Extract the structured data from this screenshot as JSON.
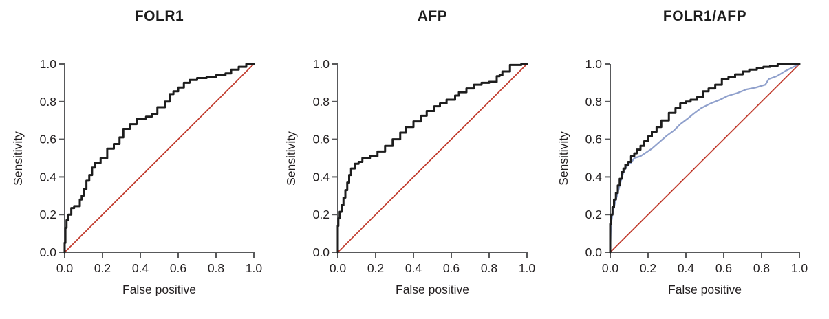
{
  "figure": {
    "background": "#ffffff",
    "text_color": "#231f20",
    "axis_color": "#58595b"
  },
  "chart_data": [
    {
      "type": "line",
      "title": "FOLR1",
      "xlabel": "False positive",
      "ylabel": "Sensitivity",
      "xlim": [
        0,
        1
      ],
      "ylim": [
        0,
        1
      ],
      "xticks": [
        0,
        0.2,
        0.4,
        0.6,
        0.8,
        1.0
      ],
      "yticks": [
        0,
        0.2,
        0.4,
        0.6,
        0.8,
        1.0
      ],
      "xtick_labels": [
        "0.0",
        "0.2",
        "0.4",
        "0.6",
        "0.8",
        "1.0"
      ],
      "ytick_labels": [
        "0.0",
        "0.2",
        "0.4",
        "0.6",
        "0.8",
        "1.0"
      ],
      "grid": false,
      "legend": "none",
      "reference_line": {
        "name": "chance-diagonal",
        "x": [
          0,
          1
        ],
        "y": [
          0,
          1
        ],
        "color": "#c0392b"
      },
      "series": [
        {
          "name": "FOLR1 ROC curve",
          "color": "#1d1d1d",
          "step": true,
          "x": [
            0,
            0.004,
            0.01,
            0.02,
            0.035,
            0.05,
            0.08,
            0.09,
            0.1,
            0.115,
            0.13,
            0.145,
            0.16,
            0.19,
            0.225,
            0.26,
            0.29,
            0.31,
            0.345,
            0.38,
            0.43,
            0.46,
            0.49,
            0.53,
            0.555,
            0.575,
            0.6,
            0.63,
            0.66,
            0.7,
            0.75,
            0.8,
            0.85,
            0.88,
            0.92,
            0.96,
            1.0
          ],
          "y": [
            0,
            0.05,
            0.13,
            0.17,
            0.2,
            0.235,
            0.245,
            0.28,
            0.3,
            0.335,
            0.38,
            0.41,
            0.45,
            0.475,
            0.5,
            0.55,
            0.575,
            0.61,
            0.655,
            0.68,
            0.71,
            0.72,
            0.735,
            0.77,
            0.8,
            0.84,
            0.855,
            0.875,
            0.9,
            0.915,
            0.925,
            0.93,
            0.94,
            0.95,
            0.97,
            0.985,
            1.0
          ]
        }
      ]
    },
    {
      "type": "line",
      "title": "AFP",
      "xlabel": "False positive",
      "ylabel": "Sensitivity",
      "xlim": [
        0,
        1
      ],
      "ylim": [
        0,
        1
      ],
      "xticks": [
        0,
        0.2,
        0.4,
        0.6,
        0.8,
        1.0
      ],
      "yticks": [
        0,
        0.2,
        0.4,
        0.6,
        0.8,
        1.0
      ],
      "xtick_labels": [
        "0.0",
        "0.2",
        "0.4",
        "0.6",
        "0.8",
        "1.0"
      ],
      "ytick_labels": [
        "0.0",
        "0.2",
        "0.4",
        "0.6",
        "0.8",
        "1.0"
      ],
      "grid": false,
      "legend": "none",
      "reference_line": {
        "name": "chance-diagonal",
        "x": [
          0,
          1
        ],
        "y": [
          0,
          1
        ],
        "color": "#c0392b"
      },
      "series": [
        {
          "name": "AFP ROC curve",
          "color": "#1d1d1d",
          "step": true,
          "x": [
            0,
            0.003,
            0.01,
            0.02,
            0.03,
            0.04,
            0.05,
            0.06,
            0.07,
            0.09,
            0.11,
            0.13,
            0.17,
            0.21,
            0.25,
            0.29,
            0.33,
            0.36,
            0.4,
            0.44,
            0.47,
            0.51,
            0.54,
            0.575,
            0.62,
            0.64,
            0.68,
            0.72,
            0.76,
            0.8,
            0.84,
            0.855,
            0.87,
            0.91,
            0.97,
            1.0
          ],
          "y": [
            0,
            0.14,
            0.18,
            0.215,
            0.25,
            0.29,
            0.33,
            0.37,
            0.41,
            0.445,
            0.47,
            0.48,
            0.5,
            0.51,
            0.535,
            0.565,
            0.6,
            0.635,
            0.665,
            0.695,
            0.725,
            0.75,
            0.775,
            0.79,
            0.81,
            0.832,
            0.85,
            0.87,
            0.89,
            0.9,
            0.905,
            0.935,
            0.94,
            0.96,
            0.995,
            1.0
          ]
        }
      ]
    },
    {
      "type": "line",
      "title": "FOLR1/AFP",
      "xlabel": "False positive",
      "ylabel": "Sensitivity",
      "xlim": [
        0,
        1
      ],
      "ylim": [
        0,
        1
      ],
      "xticks": [
        0,
        0.2,
        0.4,
        0.6,
        0.8,
        1.0
      ],
      "yticks": [
        0,
        0.2,
        0.4,
        0.6,
        0.8,
        1.0
      ],
      "xtick_labels": [
        "0.0",
        "0.2",
        "0.4",
        "0.6",
        "0.8",
        "1.0"
      ],
      "ytick_labels": [
        "0.0",
        "0.2",
        "0.4",
        "0.6",
        "0.8",
        "1.0"
      ],
      "grid": false,
      "legend": "none",
      "reference_line": {
        "name": "chance-diagonal",
        "x": [
          0,
          1
        ],
        "y": [
          0,
          1
        ],
        "color": "#c0392b"
      },
      "series": [
        {
          "name": "AFP ROC curve",
          "color": "#8fa0cc",
          "step": false,
          "x": [
            0,
            0.004,
            0.012,
            0.02,
            0.03,
            0.04,
            0.05,
            0.06,
            0.07,
            0.08,
            0.095,
            0.11,
            0.127,
            0.16,
            0.19,
            0.22,
            0.26,
            0.3,
            0.335,
            0.37,
            0.41,
            0.44,
            0.48,
            0.53,
            0.58,
            0.62,
            0.67,
            0.72,
            0.77,
            0.82,
            0.838,
            0.88,
            0.93,
            1.0
          ],
          "y": [
            0,
            0.15,
            0.2,
            0.24,
            0.28,
            0.315,
            0.355,
            0.39,
            0.425,
            0.445,
            0.465,
            0.475,
            0.5,
            0.51,
            0.53,
            0.55,
            0.585,
            0.62,
            0.645,
            0.68,
            0.71,
            0.735,
            0.765,
            0.79,
            0.81,
            0.83,
            0.845,
            0.865,
            0.875,
            0.89,
            0.92,
            0.935,
            0.965,
            1.0
          ]
        },
        {
          "name": "FOLR1/AFP combined ROC curve",
          "color": "#1d1d1d",
          "step": true,
          "x": [
            0,
            0.004,
            0.012,
            0.02,
            0.03,
            0.04,
            0.05,
            0.06,
            0.07,
            0.08,
            0.095,
            0.11,
            0.127,
            0.14,
            0.16,
            0.18,
            0.2,
            0.22,
            0.245,
            0.27,
            0.31,
            0.345,
            0.37,
            0.4,
            0.425,
            0.46,
            0.49,
            0.52,
            0.555,
            0.59,
            0.625,
            0.66,
            0.7,
            0.735,
            0.775,
            0.81,
            0.845,
            0.885,
            0.93,
            1.0
          ],
          "y": [
            0,
            0.15,
            0.2,
            0.24,
            0.28,
            0.315,
            0.355,
            0.39,
            0.425,
            0.445,
            0.465,
            0.48,
            0.51,
            0.525,
            0.545,
            0.565,
            0.59,
            0.615,
            0.64,
            0.665,
            0.7,
            0.74,
            0.765,
            0.79,
            0.8,
            0.81,
            0.825,
            0.855,
            0.87,
            0.89,
            0.92,
            0.93,
            0.945,
            0.96,
            0.97,
            0.98,
            0.985,
            0.99,
            1.0,
            1.0
          ]
        }
      ]
    }
  ]
}
